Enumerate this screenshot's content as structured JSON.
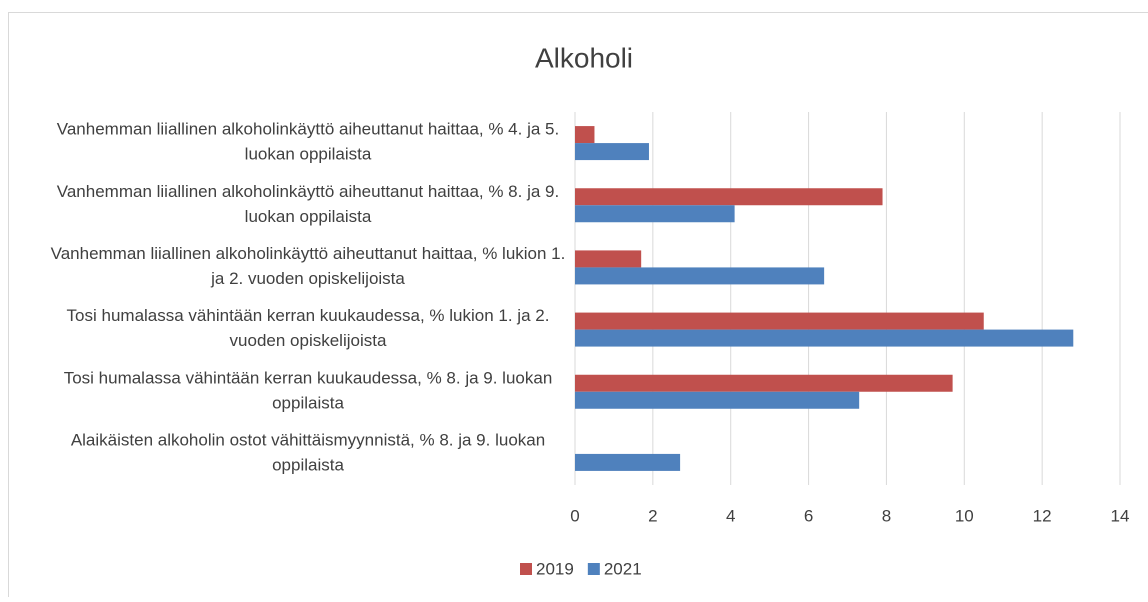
{
  "chart_data": {
    "type": "hbar",
    "title": "Alkoholi",
    "categories": [
      "Vanhemman liiallinen alkoholinkäyttö aiheuttanut haittaa, % 4. ja 5. luokan oppilaista",
      "Vanhemman liiallinen alkoholinkäyttö aiheuttanut haittaa, % 8. ja 9. luokan oppilaista",
      "Vanhemman liiallinen alkoholinkäyttö aiheuttanut haittaa, % lukion 1. ja 2. vuoden opiskelijoista",
      "Tosi humalassa vähintään kerran kuukaudessa, % lukion 1. ja 2. vuoden opiskelijoista",
      "Tosi humalassa vähintään kerran kuukaudessa, % 8. ja 9. luokan oppilaista",
      "Alaikäisten alkoholin ostot vähittäismyynnistä, % 8. ja 9. luokan oppilaista"
    ],
    "series": [
      {
        "name": "2019",
        "color": "#c0504d",
        "values": [
          0.5,
          7.9,
          1.7,
          10.5,
          9.7,
          null
        ]
      },
      {
        "name": "2021",
        "color": "#4f81bd",
        "values": [
          1.9,
          4.1,
          6.4,
          12.8,
          7.3,
          2.7
        ]
      }
    ],
    "xlim": [
      0,
      14
    ],
    "xticks": [
      0,
      2,
      4,
      6,
      8,
      10,
      12,
      14
    ],
    "grid": true,
    "legend": "bottom"
  }
}
